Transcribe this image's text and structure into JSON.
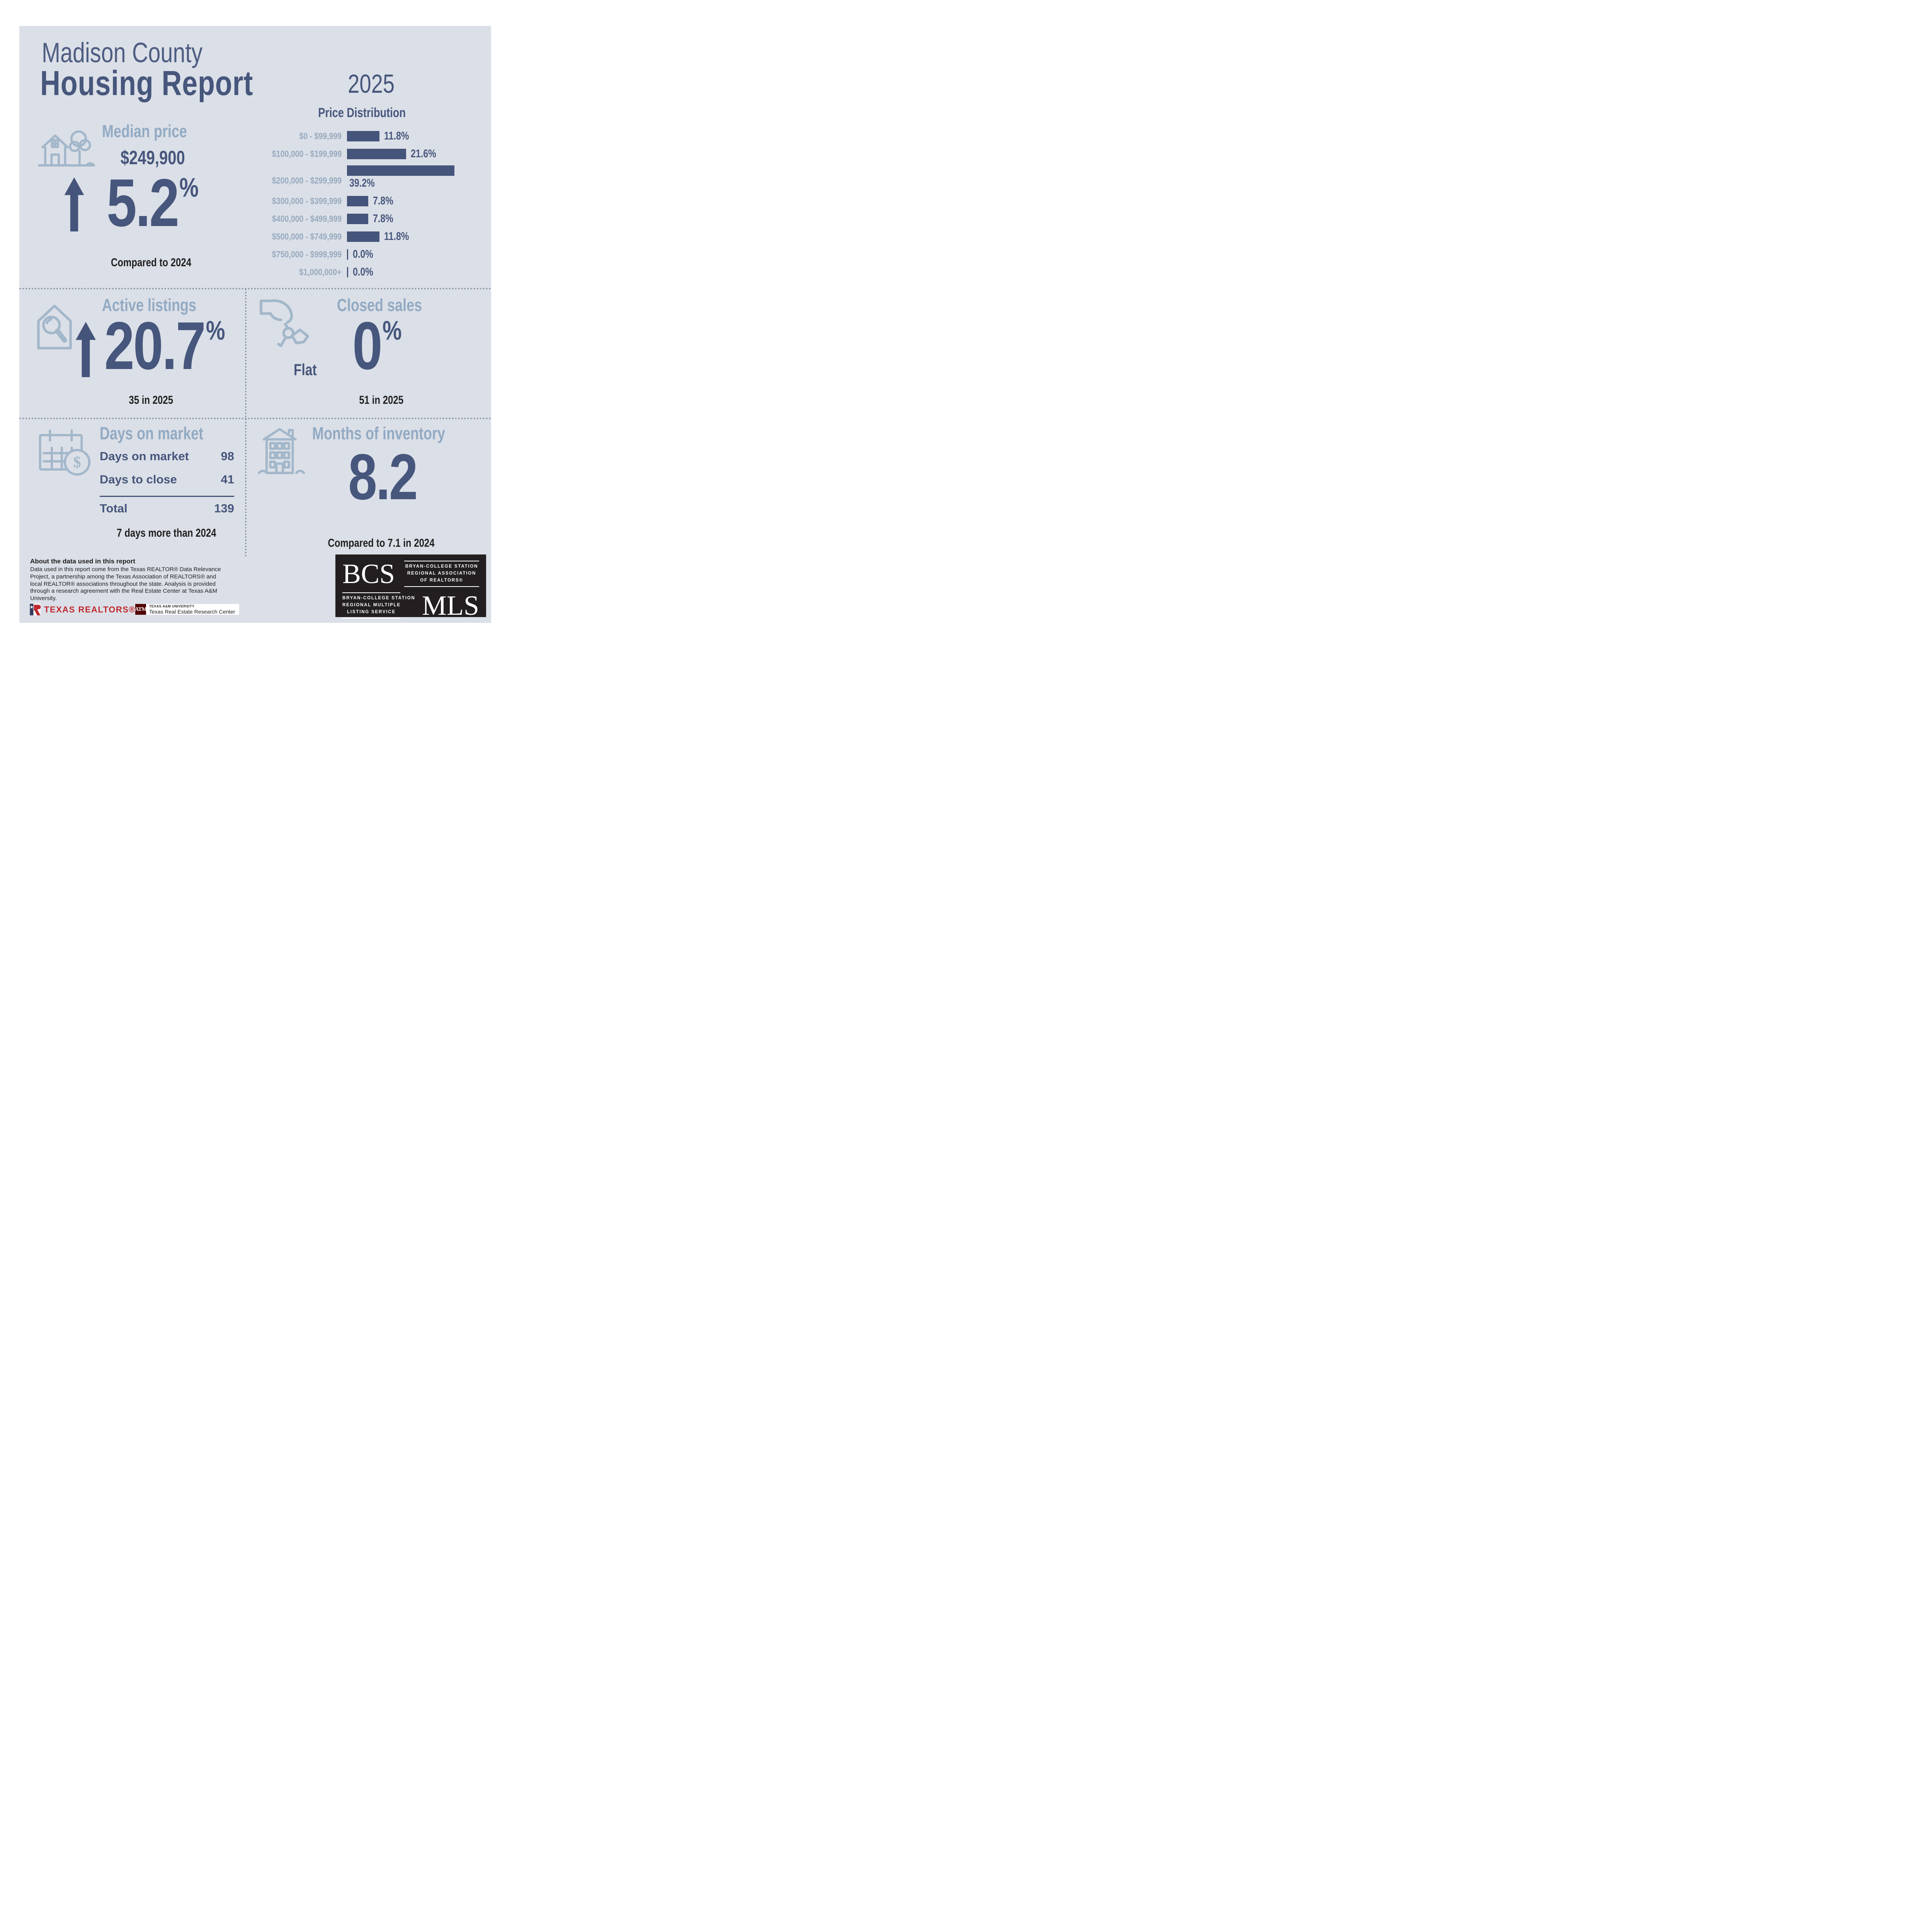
{
  "page": {
    "title_line1": "Madison County",
    "title_line2": "Housing Report",
    "year": "2025"
  },
  "colors": {
    "background": "#dbdfe7",
    "navy": "#46567c",
    "bar_navy": "#45547a",
    "steel_heading": "#92aac3",
    "icon_stroke": "#a3b7ca",
    "chart_label": "#98aabf",
    "dark_text": "#1f1f1f",
    "realtor_red": "#c0272d",
    "aggie_maroon": "#500000",
    "logo_black": "#231f20"
  },
  "chart_data": {
    "type": "bar",
    "orientation": "horizontal",
    "title": "Price Distribution",
    "categories": [
      "$0 - $99,999",
      "$100,000 - $199,999",
      "$200,000 - $299,999",
      "$300,000 - $399,999",
      "$400,000 - $499,999",
      "$500,000 - $749,999",
      "$750,000 - $999,999",
      "$1,000,000+"
    ],
    "values": [
      11.8,
      21.6,
      39.2,
      7.8,
      7.8,
      11.8,
      0.0,
      0.0
    ],
    "value_labels": [
      "11.8%",
      "21.6%",
      "39.2%",
      "7.8%",
      "7.8%",
      "11.8%",
      "0.0%",
      "0.0%"
    ],
    "xlim": [
      0,
      39.2
    ],
    "grid": false,
    "legend": false,
    "bar_color": "#45547a",
    "label_color": "#98aabf"
  },
  "median_price": {
    "heading": "Median price",
    "price": "$249,900",
    "change_value": "5.2",
    "pct_suffix": "%",
    "direction": "up",
    "note": "Compared to 2024"
  },
  "active_listings": {
    "heading": "Active listings",
    "change_value": "20.7",
    "pct_suffix": "%",
    "direction": "up",
    "note": "35 in 2025"
  },
  "closed_sales": {
    "heading": "Closed sales",
    "flat_label": "Flat",
    "change_value": "0",
    "pct_suffix": "%",
    "direction": "flat",
    "note": "51 in 2025"
  },
  "days_on_market": {
    "heading": "Days on market",
    "rows": [
      {
        "label": "Days on market",
        "value": "98"
      },
      {
        "label": "Days to close",
        "value": "41"
      }
    ],
    "total_label": "Total",
    "total_value": "139",
    "note": "7 days more than 2024"
  },
  "months_of_inventory": {
    "heading": "Months of inventory",
    "value": "8.2",
    "note": "Compared to 7.1 in 2024"
  },
  "about": {
    "heading": "About the data used in this report",
    "body": "Data used in this report come from the Texas REALTOR® Data Relevance Project, a partnership among the Texas Association of REALTORS® and local REALTOR® associations throughout the state. Analysis is provided through a research agreement with the Real Estate Center at Texas A&M University."
  },
  "logos": {
    "texas_realtors": {
      "label": "TEXAS REALTORS®"
    },
    "trerc": {
      "monogram": "ATM",
      "line1": "TEXAS A&M UNIVERSITY",
      "line2": "Texas Real Estate Research Center"
    },
    "bcs_mls": {
      "bcs": "BCS",
      "mls": "MLS",
      "assoc_lines": [
        "BRYAN-COLLEGE STATION",
        "REGIONAL ASSOCIATION",
        "OF REALTORS®"
      ],
      "mls_lines": [
        "BRYAN-COLLEGE STATION",
        "REGIONAL MULTIPLE",
        "LISTING SERVICE"
      ]
    }
  }
}
